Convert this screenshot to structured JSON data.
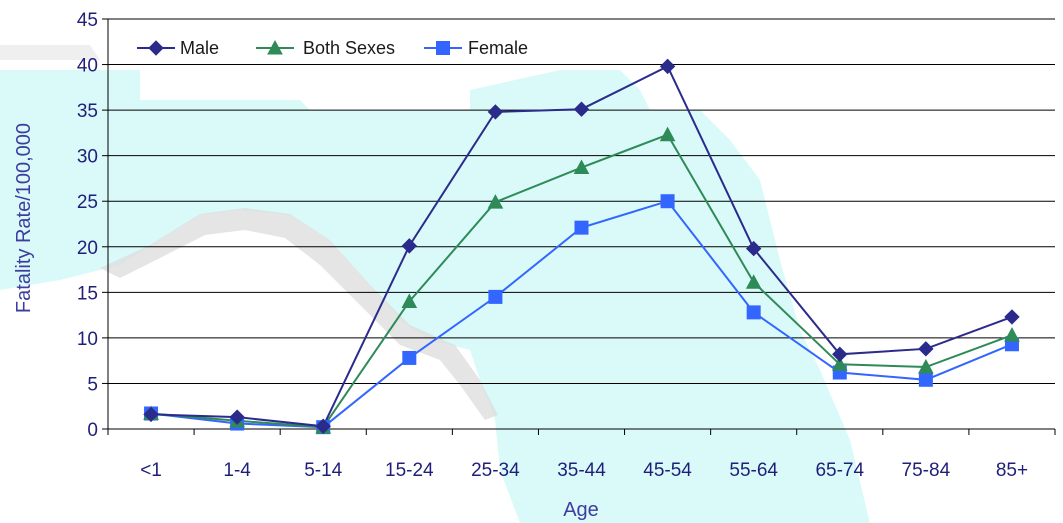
{
  "chart_data": {
    "type": "line",
    "xlabel": "Age",
    "ylabel": "Fatality Rate/100,000",
    "categories": [
      "<1",
      "1-4",
      "5-14",
      "15-24",
      "25-34",
      "35-44",
      "45-54",
      "55-64",
      "65-74",
      "75-84",
      "85+"
    ],
    "yticks": [
      "0",
      "5",
      "10",
      "15",
      "20",
      "25",
      "30",
      "35",
      "40",
      "45"
    ],
    "ylim": [
      0,
      45
    ],
    "grid": "horizontal",
    "legend_position": "top-left",
    "series": [
      {
        "name": "Male",
        "color": "#2b2b8c",
        "marker": "diamond",
        "values": [
          1.6,
          1.3,
          0.3,
          20.1,
          34.8,
          35.1,
          39.8,
          19.8,
          8.2,
          8.8,
          12.3
        ]
      },
      {
        "name": "Both Sexes",
        "color": "#2e8b57",
        "marker": "triangle",
        "values": [
          1.7,
          0.9,
          0.2,
          14.0,
          24.9,
          28.7,
          32.3,
          16.1,
          7.1,
          6.8,
          10.3
        ]
      },
      {
        "name": "Female",
        "color": "#3366ff",
        "marker": "square",
        "values": [
          1.7,
          0.6,
          0.2,
          7.8,
          14.5,
          22.1,
          25.0,
          12.8,
          6.2,
          5.4,
          9.3
        ]
      }
    ]
  }
}
